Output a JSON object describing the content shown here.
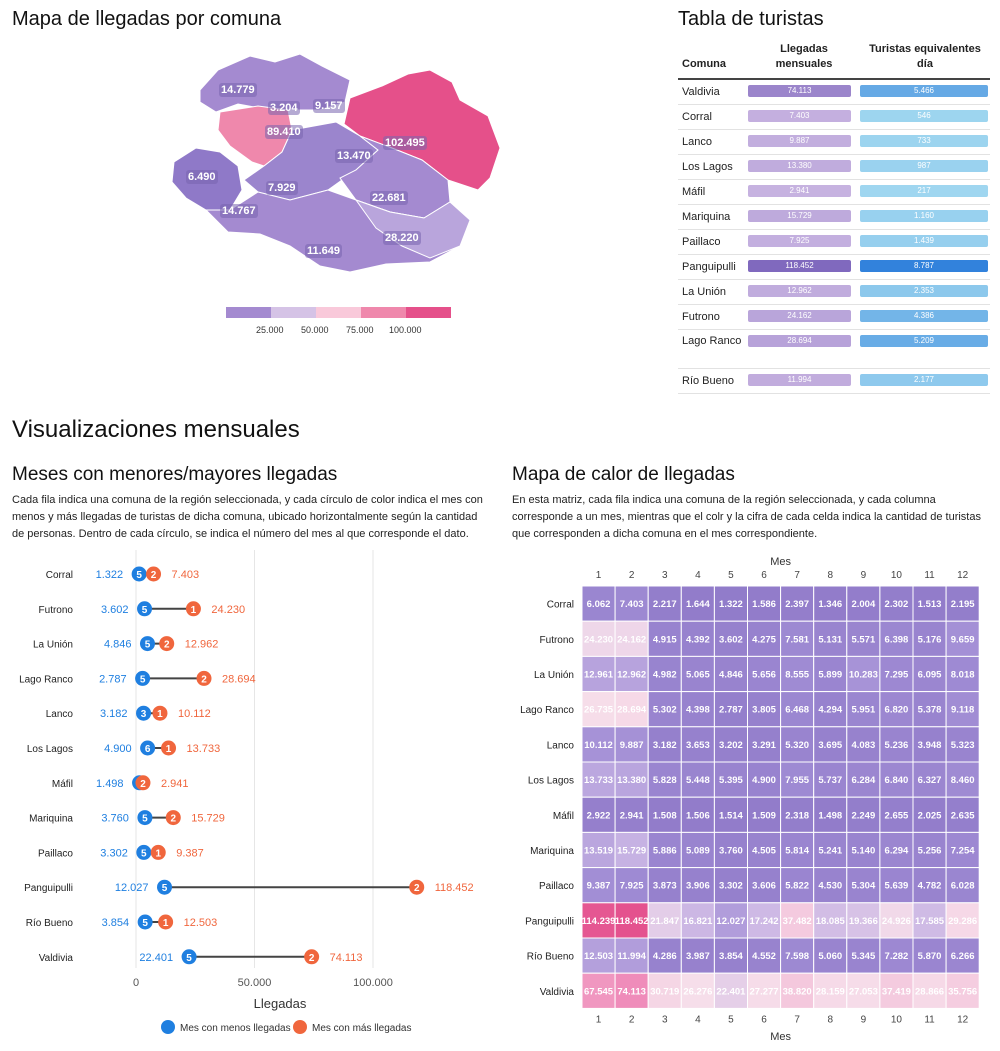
{
  "map": {
    "title": "Mapa de llegadas por comuna",
    "labels": [
      "14.779",
      "3.204",
      "9.157",
      "89.410",
      "102.495",
      "13.470",
      "6.490",
      "7.929",
      "22.681",
      "14.767",
      "28.220",
      "11.649"
    ],
    "legend_ticks": [
      "25.000",
      "50.000",
      "75.000",
      "100.000"
    ],
    "legend_colors": [
      "#a48ad0",
      "#d5c3e6",
      "#f9c9da",
      "#ef88ac",
      "#e5508a"
    ]
  },
  "table": {
    "title": "Tabla de turistas",
    "headers": {
      "comuna": "Comuna",
      "llegadas": "Llegadas mensuales",
      "turistas": "Turistas equivalentes día"
    },
    "rows": [
      {
        "comuna": "Valdivia",
        "llegadas": "74.113",
        "turistas": "5.466"
      },
      {
        "comuna": "Corral",
        "llegadas": "7.403",
        "turistas": "546"
      },
      {
        "comuna": "Lanco",
        "llegadas": "9.887",
        "turistas": "733"
      },
      {
        "comuna": "Los Lagos",
        "llegadas": "13.380",
        "turistas": "987"
      },
      {
        "comuna": "Máfil",
        "llegadas": "2.941",
        "turistas": "217"
      },
      {
        "comuna": "Mariquina",
        "llegadas": "15.729",
        "turistas": "1.160"
      },
      {
        "comuna": "Paillaco",
        "llegadas": "7.925",
        "turistas": "1.439"
      },
      {
        "comuna": "Panguipulli",
        "llegadas": "118.452",
        "turistas": "8.787"
      },
      {
        "comuna": "La Unión",
        "llegadas": "12.962",
        "turistas": "2.353"
      },
      {
        "comuna": "Futrono",
        "llegadas": "24.162",
        "turistas": "4.386"
      },
      {
        "comuna": "Lago Ranco",
        "llegadas": "28.694",
        "turistas": "5.209"
      },
      {
        "comuna": "Río Bueno",
        "llegadas": "11.994",
        "turistas": "2.177"
      }
    ]
  },
  "section_title": "Visualizaciones mensuales",
  "dumbbell": {
    "title": "Meses con menores/mayores llegadas",
    "description": "Cada fila indica una comuna de la región seleccionada, y cada círculo de color indica el mes con menos y más llegadas de turistas de dicha comuna, ubicado horizontalmente según la cantidad de personas. Dentro de cada círculo, se indica el número del mes al que corresponde el dato.",
    "xlabel": "Llegadas",
    "legend_min": "Mes con menos llegadas",
    "legend_max": "Mes con más llegadas"
  },
  "heatmap": {
    "title": "Mapa de calor de llegadas",
    "description": "En esta matriz, cada fila indica una comuna de la región seleccionada, y cada columna corresponde a un mes, mientras que el colr y la cifra de cada celda indica la cantidad de turistas que corresponden a dicha comuna en el mes correspondiente.",
    "axis_label": "Mes"
  },
  "colors": {
    "min": "#1f7fe0",
    "max": "#f0663d",
    "line": "#444444",
    "purple": "#8f79c8"
  },
  "chart_data": [
    {
      "type": "scatter",
      "name": "dumbbell",
      "xlabel": "Llegadas",
      "xlim": [
        0,
        140000
      ],
      "xticks": [
        0,
        50000,
        100000
      ],
      "xtick_labels": [
        "0",
        "50.000",
        "100.000"
      ],
      "rows": [
        {
          "comuna": "Corral",
          "min": 1322,
          "min_label": "1.322",
          "min_month": 5,
          "max": 7403,
          "max_label": "7.403",
          "max_month": 2
        },
        {
          "comuna": "Futrono",
          "min": 3602,
          "min_label": "3.602",
          "min_month": 5,
          "max": 24230,
          "max_label": "24.230",
          "max_month": 1
        },
        {
          "comuna": "La Unión",
          "min": 4846,
          "min_label": "4.846",
          "min_month": 5,
          "max": 12962,
          "max_label": "12.962",
          "max_month": 2
        },
        {
          "comuna": "Lago Ranco",
          "min": 2787,
          "min_label": "2.787",
          "min_month": 5,
          "max": 28694,
          "max_label": "28.694",
          "max_month": 2
        },
        {
          "comuna": "Lanco",
          "min": 3182,
          "min_label": "3.182",
          "min_month": 3,
          "max": 10112,
          "max_label": "10.112",
          "max_month": 1
        },
        {
          "comuna": "Los Lagos",
          "min": 4900,
          "min_label": "4.900",
          "min_month": 6,
          "max": 13733,
          "max_label": "13.733",
          "max_month": 1
        },
        {
          "comuna": "Máfil",
          "min": 1498,
          "min_label": "1.498",
          "min_month": 8,
          "max": 2941,
          "max_label": "2.941",
          "max_month": 2
        },
        {
          "comuna": "Mariquina",
          "min": 3760,
          "min_label": "3.760",
          "min_month": 5,
          "max": 15729,
          "max_label": "15.729",
          "max_month": 2
        },
        {
          "comuna": "Paillaco",
          "min": 3302,
          "min_label": "3.302",
          "min_month": 5,
          "max": 9387,
          "max_label": "9.387",
          "max_month": 1
        },
        {
          "comuna": "Panguipulli",
          "min": 12027,
          "min_label": "12.027",
          "min_month": 5,
          "max": 118452,
          "max_label": "118.452",
          "max_month": 2
        },
        {
          "comuna": "Río Bueno",
          "min": 3854,
          "min_label": "3.854",
          "min_month": 5,
          "max": 12503,
          "max_label": "12.503",
          "max_month": 1
        },
        {
          "comuna": "Valdivia",
          "min": 22401,
          "min_label": "22.401",
          "min_month": 5,
          "max": 74113,
          "max_label": "74.113",
          "max_month": 2
        }
      ],
      "legend": [
        "Mes con menos llegadas",
        "Mes con más llegadas"
      ]
    },
    {
      "type": "heatmap",
      "name": "heatmap",
      "xlabel": "Mes",
      "columns": [
        "1",
        "2",
        "3",
        "4",
        "5",
        "6",
        "7",
        "8",
        "9",
        "10",
        "11",
        "12"
      ],
      "rows": [
        "Corral",
        "Futrono",
        "La Unión",
        "Lago Ranco",
        "Lanco",
        "Los Lagos",
        "Máfil",
        "Mariquina",
        "Paillaco",
        "Panguipulli",
        "Río Bueno",
        "Valdivia"
      ],
      "values": [
        [
          "6.062",
          "7.403",
          "2.217",
          "1.644",
          "1.322",
          "1.586",
          "2.397",
          "1.346",
          "2.004",
          "2.302",
          "1.513",
          "2.195"
        ],
        [
          "24.230",
          "24.162",
          "4.915",
          "4.392",
          "3.602",
          "4.275",
          "7.581",
          "5.131",
          "5.571",
          "6.398",
          "5.176",
          "9.659"
        ],
        [
          "12.961",
          "12.962",
          "4.982",
          "5.065",
          "4.846",
          "5.656",
          "8.555",
          "5.899",
          "10.283",
          "7.295",
          "6.095",
          "8.018"
        ],
        [
          "26.735",
          "28.694",
          "5.302",
          "4.398",
          "2.787",
          "3.805",
          "6.468",
          "4.294",
          "5.951",
          "6.820",
          "5.378",
          "9.118"
        ],
        [
          "10.112",
          "9.887",
          "3.182",
          "3.653",
          "3.202",
          "3.291",
          "5.320",
          "3.695",
          "4.083",
          "5.236",
          "3.948",
          "5.323"
        ],
        [
          "13.733",
          "13.380",
          "5.828",
          "5.448",
          "5.395",
          "4.900",
          "7.955",
          "5.737",
          "6.284",
          "6.840",
          "6.327",
          "8.460"
        ],
        [
          "2.922",
          "2.941",
          "1.508",
          "1.506",
          "1.514",
          "1.509",
          "2.318",
          "1.498",
          "2.249",
          "2.655",
          "2.025",
          "2.635"
        ],
        [
          "13.519",
          "15.729",
          "5.886",
          "5.089",
          "3.760",
          "4.505",
          "5.814",
          "5.241",
          "5.140",
          "6.294",
          "5.256",
          "7.254"
        ],
        [
          "9.387",
          "7.925",
          "3.873",
          "3.906",
          "3.302",
          "3.606",
          "5.822",
          "4.530",
          "5.304",
          "5.639",
          "4.782",
          "6.028"
        ],
        [
          "114.239",
          "118.452",
          "21.847",
          "16.821",
          "12.027",
          "17.242",
          "37.482",
          "18.085",
          "19.366",
          "24.926",
          "17.585",
          "29.286"
        ],
        [
          "12.503",
          "11.994",
          "4.286",
          "3.987",
          "3.854",
          "4.552",
          "7.598",
          "5.060",
          "5.345",
          "7.282",
          "5.870",
          "6.266"
        ],
        [
          "67.545",
          "74.113",
          "30.719",
          "26.276",
          "22.401",
          "27.277",
          "38.820",
          "28.159",
          "27.053",
          "37.419",
          "28.866",
          "35.756"
        ]
      ]
    }
  ]
}
